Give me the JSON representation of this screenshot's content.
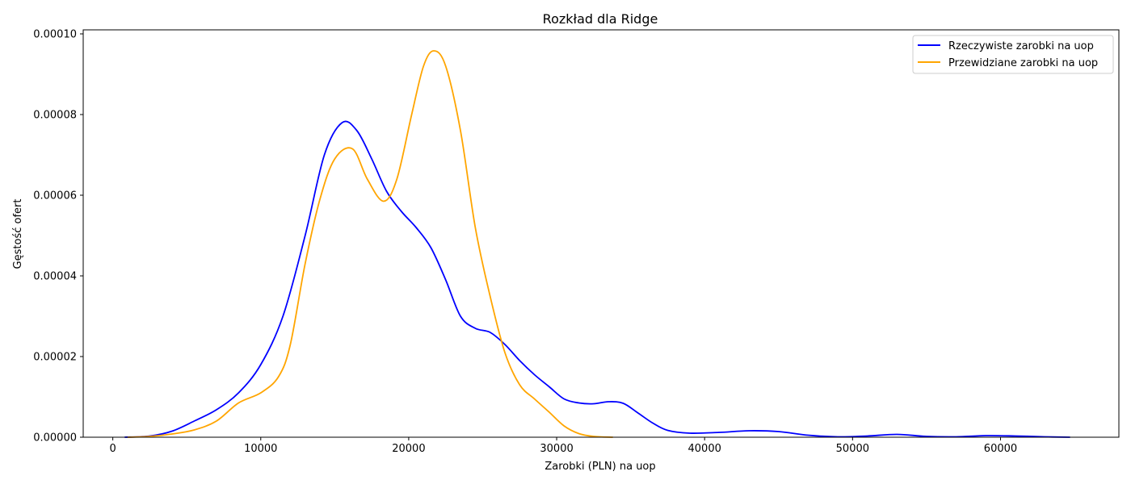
{
  "chart_data": {
    "type": "line",
    "title": "Rozkład dla Ridge",
    "xlabel": "Zarobki (PLN) na uop",
    "ylabel": "Gęstość ofert",
    "xlim": [
      -2000,
      68000
    ],
    "ylim": [
      0,
      0.000101
    ],
    "xticks": [
      0,
      10000,
      20000,
      30000,
      40000,
      50000,
      60000
    ],
    "xtick_labels": [
      "0",
      "10000",
      "20000",
      "30000",
      "40000",
      "50000",
      "60000"
    ],
    "yticks": [
      0,
      2e-05,
      4e-05,
      6e-05,
      8e-05,
      0.0001
    ],
    "ytick_labels": [
      "0.00000",
      "0.00002",
      "0.00004",
      "0.00006",
      "0.00008",
      "0.00010"
    ],
    "grid": false,
    "legend_position": "top-right",
    "series": [
      {
        "name": "Rzeczywiste zarobki na uop",
        "color": "#0000ff",
        "x": [
          800,
          2500,
          4000,
          5500,
          7000,
          8500,
          10000,
          11500,
          13000,
          14300,
          15500,
          16500,
          17500,
          18500,
          19500,
          20500,
          21500,
          22500,
          23500,
          24500,
          25500,
          26500,
          27500,
          28500,
          29500,
          30500,
          31500,
          32500,
          33500,
          34500,
          35500,
          36500,
          37500,
          39000,
          41000,
          43000,
          45000,
          47000,
          49000,
          51000,
          53000,
          55000,
          57000,
          59000,
          61000,
          63000,
          64700
        ],
        "y": [
          0,
          3e-07,
          1.5e-06,
          4e-06,
          6.8e-06,
          1.1e-05,
          1.8e-05,
          3e-05,
          5e-05,
          7e-05,
          7.8e-05,
          7.6e-05,
          6.9e-05,
          6.1e-05,
          5.6e-05,
          5.2e-05,
          4.7e-05,
          3.9e-05,
          3e-05,
          2.7e-05,
          2.6e-05,
          2.3e-05,
          1.9e-05,
          1.55e-05,
          1.25e-05,
          9.5e-06,
          8.5e-06,
          8.3e-06,
          8.8e-06,
          8.4e-06,
          6e-06,
          3.5e-06,
          1.7e-06,
          1e-06,
          1.2e-06,
          1.6e-06,
          1.4e-06,
          5e-07,
          1e-07,
          3e-07,
          7e-07,
          2e-07,
          1e-07,
          4e-07,
          3e-07,
          1e-07,
          0
        ]
      },
      {
        "name": "Przewidziane zarobki na uop",
        "color": "#ffa500",
        "x": [
          1000,
          2500,
          4000,
          5500,
          7000,
          8500,
          10000,
          11200,
          12000,
          13000,
          14000,
          15000,
          16200,
          17200,
          18300,
          19200,
          20200,
          21000,
          21700,
          22500,
          23500,
          24500,
          25500,
          26500,
          27500,
          28500,
          29500,
          30500,
          31500,
          32500,
          33800
        ],
        "y": [
          0,
          2e-07,
          8e-07,
          1.8e-06,
          4e-06,
          8.5e-06,
          1.1e-05,
          1.5e-05,
          2.3e-05,
          4.3e-05,
          5.9e-05,
          6.9e-05,
          7.15e-05,
          6.4e-05,
          5.85e-05,
          6.4e-05,
          8e-05,
          9.2e-05,
          9.58e-05,
          9.2e-05,
          7.6e-05,
          5.2e-05,
          3.5e-05,
          2.1e-05,
          1.3e-05,
          9.5e-06,
          6.2e-06,
          2.8e-06,
          9e-07,
          2e-07,
          0
        ]
      }
    ]
  }
}
